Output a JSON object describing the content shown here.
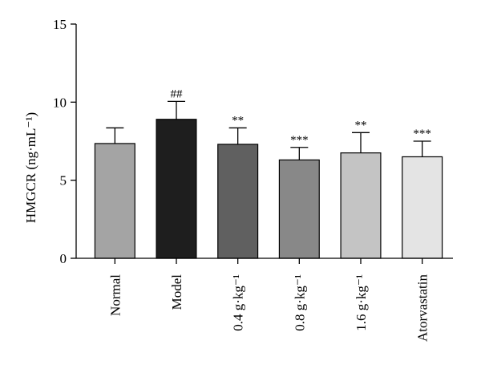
{
  "chart_data": {
    "type": "bar",
    "title": "",
    "xlabel": "",
    "ylabel": "HMGCR (ng·mL⁻¹)",
    "ylim": [
      0,
      15
    ],
    "yticks": [
      0,
      5,
      10,
      15
    ],
    "grid": false,
    "categories": [
      "Normal",
      "Model",
      "0.4 g·kg⁻¹",
      "0.8 g·kg⁻¹",
      "1.6 g·kg⁻¹",
      "Atorvastatin"
    ],
    "values": [
      7.35,
      8.9,
      7.3,
      6.3,
      6.75,
      6.5
    ],
    "errors": [
      1.0,
      1.15,
      1.05,
      0.8,
      1.3,
      1.0
    ],
    "significance": [
      "",
      "##",
      "**",
      "***",
      "**",
      "***"
    ],
    "bar_colors": [
      "#a4a4a4",
      "#1e1e1e",
      "#606060",
      "#888888",
      "#c4c4c4",
      "#e4e4e4"
    ]
  }
}
